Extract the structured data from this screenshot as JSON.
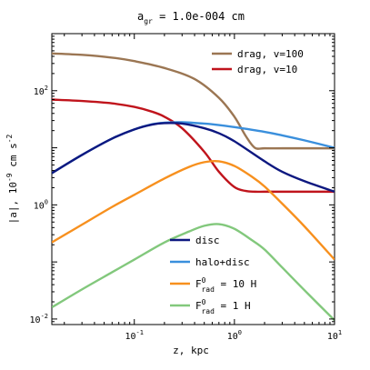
{
  "chart_data": {
    "type": "line",
    "title_main": "a",
    "title_sub": "gr",
    "title_rest": " = 1.0e-004 cm",
    "xlabel": "z, kpc",
    "ylabel_pre": "|a|, 10",
    "ylabel_exp1": "-9",
    "ylabel_mid": " cm s",
    "ylabel_exp2": "-2",
    "xscale": "log",
    "yscale": "log",
    "xlim": [
      0.015,
      10
    ],
    "ylim": [
      0.008,
      1000
    ],
    "xticks": [
      {
        "value": 0.1,
        "base": "10",
        "exp": "-1"
      },
      {
        "value": 1,
        "base": "10",
        "exp": "0"
      },
      {
        "value": 10,
        "base": "10",
        "exp": "1"
      }
    ],
    "yticks": [
      {
        "value": 0.01,
        "base": "10",
        "exp": "-2"
      },
      {
        "value": 1,
        "base": "10",
        "exp": "0"
      },
      {
        "value": 100,
        "base": "10",
        "exp": "2"
      }
    ],
    "series": [
      {
        "key": "drag100",
        "color": "#9b7653",
        "x": [
          0.015,
          0.03,
          0.06,
          0.1,
          0.2,
          0.4,
          0.7,
          1.0,
          1.3,
          1.6,
          2.0,
          3.0,
          5.0,
          10
        ],
        "y": [
          450,
          425,
          380,
          330,
          250,
          160,
          75,
          35,
          16,
          10,
          9.8,
          9.8,
          9.8,
          9.8
        ]
      },
      {
        "key": "drag10",
        "color": "#c0141c",
        "x": [
          0.015,
          0.03,
          0.06,
          0.1,
          0.15,
          0.2,
          0.3,
          0.5,
          0.7,
          1.0,
          1.3,
          1.6,
          2.0,
          3.0,
          10
        ],
        "y": [
          70,
          66,
          60,
          52,
          43,
          35,
          22,
          8.5,
          3.8,
          2.05,
          1.75,
          1.7,
          1.7,
          1.7,
          1.7
        ]
      },
      {
        "key": "halodisc",
        "color": "#3a8fdc",
        "x": [
          0.015,
          0.03,
          0.06,
          0.1,
          0.15,
          0.2,
          0.3,
          0.5,
          0.7,
          1.0,
          2.0,
          3.0,
          5.0,
          10
        ],
        "y": [
          3.6,
          7.5,
          14.5,
          21,
          25.8,
          27.5,
          28,
          26.5,
          25,
          23,
          19,
          16.5,
          13.5,
          10
        ]
      },
      {
        "key": "disc",
        "color": "#0d1880",
        "x": [
          0.015,
          0.03,
          0.06,
          0.1,
          0.15,
          0.2,
          0.3,
          0.5,
          0.7,
          1.0,
          2.0,
          3.0,
          5.0,
          10
        ],
        "y": [
          3.6,
          7.5,
          14.5,
          21,
          25.5,
          27,
          26.5,
          22,
          18,
          13,
          5.8,
          3.8,
          2.6,
          1.7
        ]
      },
      {
        "key": "frad10",
        "color": "#f7901e",
        "x": [
          0.015,
          0.03,
          0.06,
          0.1,
          0.2,
          0.35,
          0.5,
          0.7,
          1.0,
          1.5,
          2.0,
          3.0,
          5.0,
          10
        ],
        "y": [
          0.22,
          0.45,
          0.92,
          1.5,
          2.9,
          4.6,
          5.6,
          5.8,
          4.8,
          3.1,
          2.1,
          1.05,
          0.42,
          0.11
        ]
      },
      {
        "key": "frad1",
        "color": "#82c87c",
        "x": [
          0.015,
          0.03,
          0.06,
          0.1,
          0.2,
          0.35,
          0.5,
          0.7,
          1.0,
          1.5,
          2.0,
          3.0,
          5.0,
          10
        ],
        "y": [
          0.016,
          0.033,
          0.066,
          0.11,
          0.22,
          0.34,
          0.43,
          0.46,
          0.38,
          0.24,
          0.165,
          0.08,
          0.032,
          0.0095
        ]
      }
    ],
    "legend_top": [
      {
        "key": "drag100",
        "color": "#9b7653",
        "text": "drag, v=100"
      },
      {
        "key": "drag10",
        "color": "#c0141c",
        "text": "drag, v=10"
      }
    ],
    "legend_bottom": [
      {
        "key": "disc",
        "color": "#0d1880",
        "text": "disc"
      },
      {
        "key": "halodisc",
        "color": "#3a8fdc",
        "text": "halo+disc"
      },
      {
        "key": "frad10",
        "color": "#f7901e",
        "text": "F",
        "sup": "0",
        "sub": "rad",
        "rest": " = 10 H"
      },
      {
        "key": "frad1",
        "color": "#82c87c",
        "text": "F",
        "sup": "0",
        "sub": "rad",
        "rest": " = 1 H"
      }
    ]
  }
}
